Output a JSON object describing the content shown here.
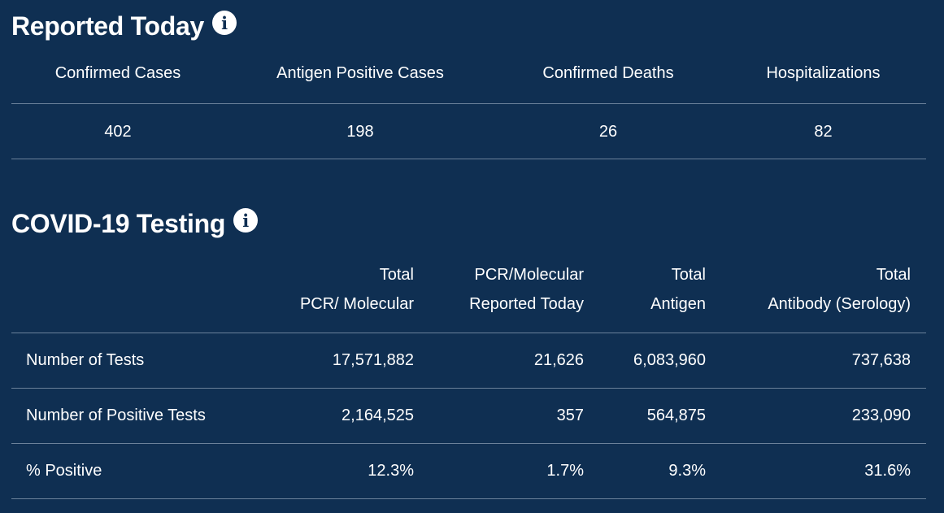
{
  "reported_today": {
    "title": "Reported Today",
    "info_icon": "info-icon",
    "headers": [
      "Confirmed Cases",
      "Antigen Positive Cases",
      "Confirmed Deaths",
      "Hospitalizations"
    ],
    "values": [
      "402",
      "198",
      "26",
      "82"
    ]
  },
  "testing": {
    "title": "COVID-19 Testing",
    "info_icon": "info-icon",
    "headers": [
      {
        "line1": "Total",
        "line2": "PCR/ Molecular"
      },
      {
        "line1": "PCR/Molecular",
        "line2": "Reported Today"
      },
      {
        "line1": "Total",
        "line2": "Antigen"
      },
      {
        "line1": "Total",
        "line2": "Antibody (Serology)"
      }
    ],
    "rows": [
      {
        "label": "Number of Tests",
        "values": [
          "17,571,882",
          "21,626",
          "6,083,960",
          "737,638"
        ]
      },
      {
        "label": "Number of Positive Tests",
        "values": [
          "2,164,525",
          "357",
          "564,875",
          "233,090"
        ]
      },
      {
        "label": "% Positive",
        "values": [
          "12.3%",
          "1.7%",
          "9.3%",
          "31.6%"
        ]
      }
    ]
  },
  "colors": {
    "background": "#0f2f52",
    "text": "#ffffff",
    "divider": "#6b819a"
  }
}
